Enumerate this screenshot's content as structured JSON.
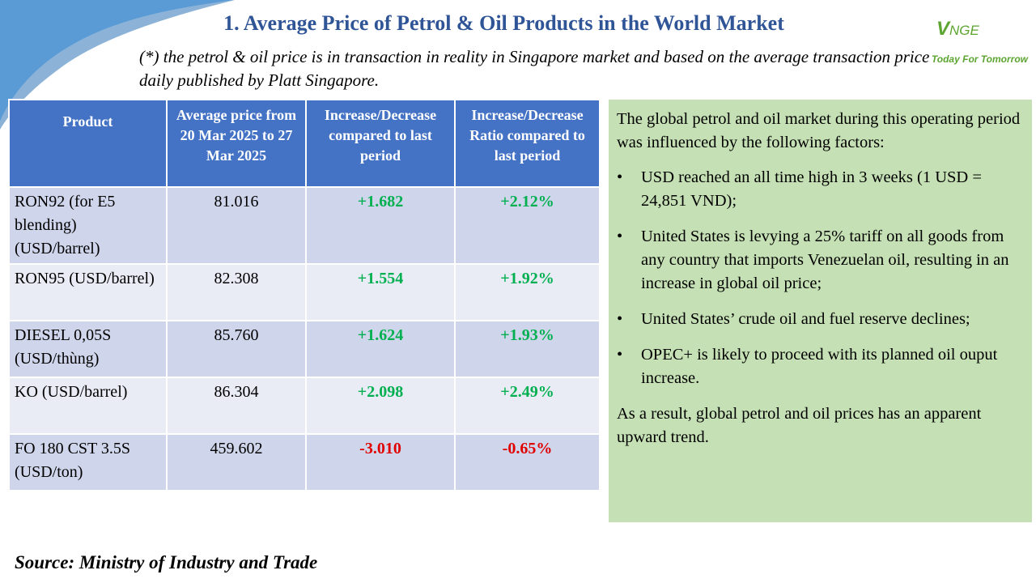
{
  "title": "1. Average Price of Petrol & Oil Products in the World Market",
  "subtitle": "(*) the petrol & oil price is in transaction in reality in Singapore market and based on the average transaction price daily published by Platt Singapore.",
  "logo": {
    "mark_big": "V",
    "mark_small": "NGE",
    "slogan": "Today For Tomorrow",
    "color": "#5da531"
  },
  "colors": {
    "header_blue": "#4472c4",
    "title_blue": "#2f5597",
    "row_dark": "#cfd5ea",
    "row_light": "#e9ebf5",
    "increase_green": "#00b050",
    "decrease_red": "#e00000",
    "panel_green": "#c5e0b4",
    "swoosh_blue": "#5b9bd5"
  },
  "table": {
    "headers": {
      "product": "Product",
      "avg_price": "Average price from 20 Mar 2025 to 27 Mar 2025",
      "change": "Increase/Decrease compared to last period",
      "ratio": "Increase/Decrease Ratio compared to last period"
    },
    "rows": [
      {
        "product": "RON92 (for E5 blending) (USD/barrel)",
        "avg_price": "81.016",
        "change": "+1.682",
        "ratio": "+2.12%"
      },
      {
        "product": "RON95 (USD/barrel)",
        "avg_price": "82.308",
        "change": "+1.554",
        "ratio": "+1.92%"
      },
      {
        "product": "DIESEL 0,05S (USD/thùng)",
        "avg_price": "85.760",
        "change": "+1.624",
        "ratio": "+1.93%"
      },
      {
        "product": "KO (USD/barrel)",
        "avg_price": "86.304",
        "change": "+2.098",
        "ratio": "+2.49%"
      },
      {
        "product": "FO 180 CST 3.5S (USD/ton)",
        "avg_price": "459.602",
        "change": "-3.010",
        "ratio": "-0.65%"
      }
    ]
  },
  "commentary": {
    "intro": "The global petrol and oil market during this operating period was influenced by the following factors:",
    "bullet_symbol": "•",
    "bullets": [
      "USD reached an all time high in 3 weeks (1 USD = 24,851 VND);",
      "United States is levying a 25% tariff on all goods from any country that imports Venezuelan oil, resulting in an increase in global oil price;",
      "United States’ crude oil and fuel reserve declines;",
      "OPEC+ is likely to proceed with its planned oil ouput increase."
    ],
    "conclusion": "As a result, global petrol and oil prices has an apparent upward trend."
  },
  "source": "Source: Ministry of Industry and Trade"
}
